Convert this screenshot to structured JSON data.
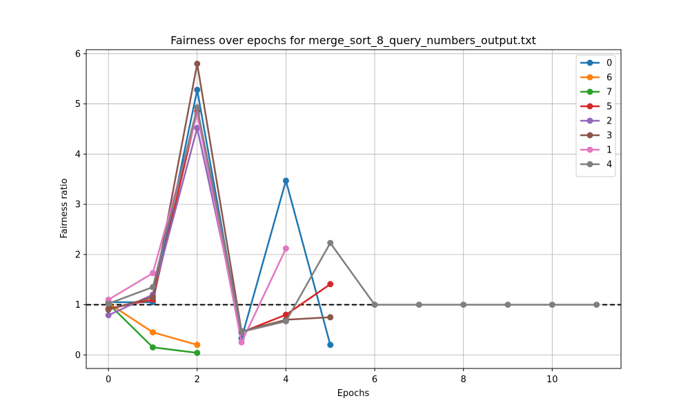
{
  "chart_data": {
    "type": "line",
    "title": "Fairness over epochs for merge_sort_8_query_numbers_output.txt",
    "xlabel": "Epochs",
    "ylabel": "Fairness ratio",
    "xlim": [
      -0.5,
      11.55
    ],
    "ylim": [
      -0.27,
      6.08
    ],
    "xticks": [
      0,
      2,
      4,
      6,
      8,
      10
    ],
    "yticks": [
      0,
      1,
      2,
      3,
      4,
      5,
      6
    ],
    "grid": true,
    "legend_position": "top-right",
    "reference_line": {
      "y": 1,
      "style": "dashed",
      "color": "#000000"
    },
    "series": [
      {
        "name": "0",
        "color": "#1f77b4",
        "x": [
          0,
          1,
          2,
          3,
          4,
          5
        ],
        "values": [
          1.05,
          1.05,
          5.28,
          0.33,
          3.47,
          0.2
        ]
      },
      {
        "name": "6",
        "color": "#ff7f0e",
        "x": [
          0,
          1,
          2
        ],
        "values": [
          1.03,
          0.45,
          0.2
        ]
      },
      {
        "name": "7",
        "color": "#2ca02c",
        "x": [
          0,
          1,
          2
        ],
        "values": [
          1.02,
          0.15,
          0.04
        ]
      },
      {
        "name": "5",
        "color": "#d62728",
        "x": [
          0,
          1,
          2,
          3,
          4,
          5
        ],
        "values": [
          0.92,
          1.1,
          4.85,
          0.45,
          0.8,
          1.41
        ]
      },
      {
        "name": "2",
        "color": "#9467bd",
        "x": [
          0,
          1,
          2,
          3
        ],
        "values": [
          0.79,
          1.2,
          4.52,
          0.43
        ]
      },
      {
        "name": "3",
        "color": "#8c564b",
        "x": [
          0,
          1,
          2,
          3,
          4,
          5
        ],
        "values": [
          0.9,
          1.15,
          5.8,
          0.47,
          0.7,
          0.75
        ]
      },
      {
        "name": "1",
        "color": "#e377c2",
        "x": [
          0,
          1,
          2,
          3,
          4
        ],
        "values": [
          1.1,
          1.63,
          4.8,
          0.25,
          2.12
        ]
      },
      {
        "name": "4",
        "color": "#7f7f7f",
        "x": [
          0,
          1,
          2,
          3,
          4,
          5,
          6,
          7,
          8,
          9,
          10,
          11
        ],
        "values": [
          1.02,
          1.35,
          4.93,
          0.46,
          0.67,
          2.23,
          1.0,
          1.0,
          1.0,
          1.0,
          1.0,
          1.0
        ]
      }
    ]
  }
}
